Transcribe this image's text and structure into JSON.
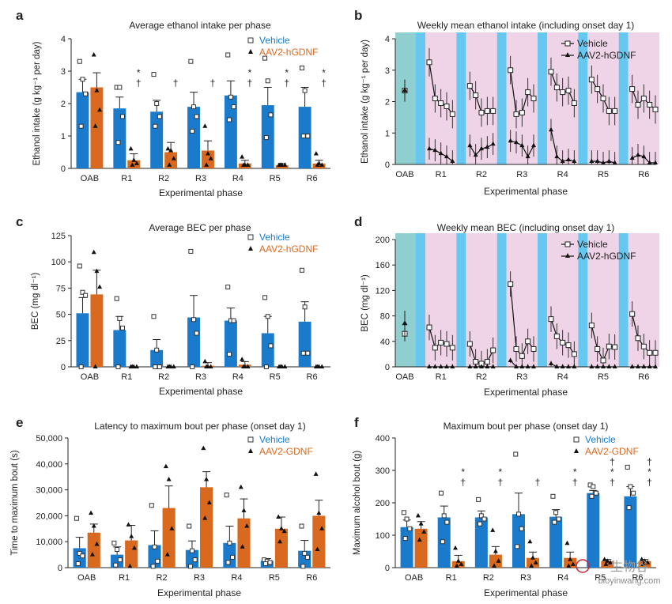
{
  "colors": {
    "vehicle": "#1a7acb",
    "treatment": "#d9691e",
    "oab_band": "#8fcfcf",
    "pink_band": "#efd3e6",
    "blue_band": "#66c8f0",
    "axis": "#222222"
  },
  "watermark": {
    "text": "bioyinwang.com",
    "cn": "生物谷"
  },
  "panels": [
    {
      "letter": "a",
      "title": "Average ethanol intake per phase",
      "xlabel": "Experimental phase",
      "ylabel": "Ethanol intake (g kg⁻¹ per day)"
    },
    {
      "letter": "b",
      "title": "Weekly mean ethanol intake (including onset day 1)",
      "xlabel": "Experimental phase",
      "ylabel": "Ethanol intake (g kg⁻¹ per day)"
    },
    {
      "letter": "c",
      "title": "Average BEC per phase",
      "xlabel": "Experimental phase",
      "ylabel": "BEC (mg dl⁻¹)"
    },
    {
      "letter": "d",
      "title": "Weekly mean BEC (including onset day 1)",
      "xlabel": "Experimental phase",
      "ylabel": "BEC (mg dl⁻¹)"
    },
    {
      "letter": "e",
      "title": "Latency to maximum bout per phase (onset day 1)",
      "xlabel": "Experimental phase",
      "ylabel": "Time to maximum bout (s)"
    },
    {
      "letter": "f",
      "title": "Maximum bout per phase (onset day 1)",
      "xlabel": "Experimental phase",
      "ylabel": "Maximum alcohol bout (g)"
    }
  ],
  "chart_data": [
    {
      "type": "bar",
      "panel": "a",
      "categories": [
        "OAB",
        "R1",
        "R2",
        "R3",
        "R4",
        "R5",
        "R6"
      ],
      "ylim": [
        0,
        4
      ],
      "yticks": [
        0,
        1,
        2,
        3,
        4
      ],
      "legend": [
        "Vehicle",
        "AAV2-hGDNF"
      ],
      "series": [
        {
          "name": "Vehicle",
          "values": [
            2.35,
            1.85,
            1.75,
            1.9,
            2.25,
            1.95,
            1.9
          ],
          "err": [
            0.4,
            0.35,
            0.35,
            0.45,
            0.45,
            0.55,
            0.6
          ],
          "points": [
            [
              3.3,
              2.75,
              2.3,
              1.3
            ],
            [
              2.5,
              2.5,
              1.6,
              0.8
            ],
            [
              2.9,
              2.0,
              1.6,
              1.3
            ],
            [
              3.3,
              1.9,
              1.6,
              1.15
            ],
            [
              3.5,
              2.2,
              1.9,
              1.5
            ],
            [
              3.4,
              2.7,
              1.65,
              0.95
            ],
            [
              3.1,
              2.4,
              1.0,
              1.0
            ]
          ]
        },
        {
          "name": "AAV2-hGDNF",
          "values": [
            2.5,
            0.25,
            0.5,
            0.55,
            0.15,
            0.1,
            0.15
          ],
          "err": [
            0.45,
            0.2,
            0.3,
            0.3,
            0.1,
            0.05,
            0.1
          ],
          "points": [
            [
              3.5,
              2.4,
              1.8,
              1.3
            ],
            [
              0.6,
              0.25,
              0.15,
              0.1
            ],
            [
              0.6,
              0.55,
              0.3,
              0.1
            ],
            [
              1.3,
              0.45,
              0.3,
              0.1
            ],
            [
              0.35,
              0.1,
              0.1,
              0.1
            ],
            [
              0.1,
              0.1,
              0.1,
              0.1
            ],
            [
              0.45,
              0.15,
              0.1,
              0.1
            ]
          ]
        }
      ],
      "annotations": [
        {
          "category": "R1",
          "marks": [
            "*",
            "†"
          ]
        },
        {
          "category": "R2",
          "marks": [
            "†"
          ]
        },
        {
          "category": "R3",
          "marks": [
            "†"
          ]
        },
        {
          "category": "R4",
          "marks": [
            "*",
            "†"
          ]
        },
        {
          "category": "R5",
          "marks": [
            "*",
            "†"
          ]
        },
        {
          "category": "R6",
          "marks": [
            "*",
            "†"
          ]
        }
      ]
    },
    {
      "type": "line",
      "panel": "b",
      "categories": [
        "OAB",
        "R1",
        "R2",
        "R3",
        "R4",
        "R5",
        "R6"
      ],
      "ylim": [
        0,
        4
      ],
      "yticks": [
        0,
        1,
        2,
        3,
        4
      ],
      "legend": [
        "Vehicle",
        "AAV2-hGDNF"
      ],
      "oab": {
        "Vehicle": [
          2.35,
          0.35
        ],
        "AAV2-hGDNF": [
          2.35,
          0.35
        ]
      },
      "series": [
        {
          "name": "Vehicle",
          "weeks": [
            [
              3.25,
              2.1,
              1.95,
              1.85,
              1.6
            ],
            [
              2.5,
              2.2,
              1.65,
              1.7,
              1.7
            ],
            [
              3.0,
              1.6,
              1.65,
              2.3,
              2.1
            ],
            [
              2.95,
              2.45,
              2.3,
              2.35,
              1.95
            ],
            [
              2.7,
              2.4,
              2.1,
              1.7,
              1.7
            ],
            [
              2.4,
              1.9,
              2.1,
              1.9,
              1.75
            ]
          ],
          "err": 0.45
        },
        {
          "name": "AAV2-hGDNF",
          "weeks": [
            [
              0.5,
              0.45,
              0.35,
              0.25,
              0.1
            ],
            [
              0.6,
              0.3,
              0.5,
              0.55,
              0.65
            ],
            [
              0.75,
              0.7,
              0.6,
              0.25,
              0.6
            ],
            [
              1.1,
              0.25,
              0.1,
              0.15,
              0.1
            ],
            [
              0.1,
              0.1,
              0.05,
              0.1,
              0.05
            ],
            [
              0.2,
              0.3,
              0.25,
              0.05,
              0.05
            ]
          ],
          "err": 0.35
        }
      ]
    },
    {
      "type": "bar",
      "panel": "c",
      "categories": [
        "OAB",
        "R1",
        "R2",
        "R3",
        "R4",
        "R5",
        "R6"
      ],
      "ylim": [
        0,
        125
      ],
      "yticks": [
        0,
        25,
        50,
        75,
        100,
        125
      ],
      "legend": [
        "Vehicle",
        "AAV2-hGDNF"
      ],
      "series": [
        {
          "name": "Vehicle",
          "values": [
            51,
            35,
            16,
            47,
            44,
            32,
            43
          ],
          "err": [
            15,
            13,
            10,
            21,
            12,
            16,
            19
          ],
          "points": [
            [
              96,
              71,
              68,
              0
            ],
            [
              65,
              46,
              37,
              0
            ],
            [
              48,
              16,
              0,
              0
            ],
            [
              110,
              45,
              32,
              0
            ],
            [
              76,
              44,
              44,
              12
            ],
            [
              66,
              48,
              20,
              0
            ],
            [
              92,
              57,
              13,
              13
            ]
          ]
        },
        {
          "name": "AAV2-hGDNF",
          "values": [
            69,
            0,
            0,
            1,
            2,
            0,
            0
          ],
          "err": [
            23,
            0,
            0,
            3,
            3,
            0,
            0
          ],
          "points": [
            [
              109,
              91,
              76,
              0
            ],
            [
              0,
              0,
              0,
              0
            ],
            [
              0,
              0,
              0,
              0
            ],
            [
              5,
              0,
              0,
              0
            ],
            [
              7,
              0,
              0,
              0
            ],
            [
              0,
              0,
              0,
              0
            ],
            [
              0,
              0,
              0,
              0
            ]
          ]
        }
      ]
    },
    {
      "type": "line",
      "panel": "d",
      "categories": [
        "OAB",
        "R1",
        "R2",
        "R3",
        "R4",
        "R5",
        "R6"
      ],
      "ylim": [
        0,
        200
      ],
      "yticks": [
        0,
        40,
        80,
        120,
        160,
        200
      ],
      "legend": [
        "Vehicle",
        "AAV2-hGDNF"
      ],
      "oab": {
        "Vehicle": [
          52,
          12
        ],
        "AAV2-hGDNF": [
          68,
          20
        ]
      },
      "series": [
        {
          "name": "Vehicle",
          "weeks": [
            [
              62,
              30,
              38,
              36,
              30
            ],
            [
              36,
              8,
              5,
              8,
              26
            ],
            [
              130,
              28,
              17,
              40,
              28
            ],
            [
              75,
              48,
              38,
              34,
              20
            ],
            [
              65,
              28,
              10,
              32,
              31
            ],
            [
              83,
              45,
              32,
              22,
              22
            ]
          ],
          "err": 20
        },
        {
          "name": "AAV2-hGDNF",
          "weeks": [
            [
              0,
              0,
              0,
              0,
              0
            ],
            [
              0,
              0,
              0,
              0,
              0
            ],
            [
              10,
              0,
              0,
              0,
              0
            ],
            [
              5,
              0,
              0,
              0,
              0
            ],
            [
              0,
              0,
              0,
              0,
              0
            ],
            [
              0,
              0,
              0,
              0,
              0
            ]
          ],
          "err": 4
        }
      ]
    },
    {
      "type": "bar",
      "panel": "e",
      "categories": [
        "OAB",
        "R1",
        "R2",
        "R3",
        "R4",
        "R5",
        "R6"
      ],
      "ylim": [
        0,
        50000
      ],
      "yticks": [
        0,
        10000,
        20000,
        30000,
        40000,
        50000
      ],
      "ytick_labels": [
        "0",
        "10,000",
        "20,000",
        "30,000",
        "40,000",
        "50,000"
      ],
      "legend": [
        "Vehicle",
        "AAV2-GDNF"
      ],
      "series": [
        {
          "name": "Vehicle",
          "values": [
            7500,
            5000,
            8700,
            6800,
            9500,
            2600,
            6500
          ],
          "err": [
            4200,
            3000,
            5500,
            3500,
            6500,
            900,
            4000
          ],
          "points": [
            [
              19000,
              5500,
              4500,
              1500
            ],
            [
              9500,
              7000,
              3000,
              1000
            ],
            [
              24000,
              8000,
              2500,
              500
            ],
            [
              16000,
              6500,
              3000,
              500
            ],
            [
              28000,
              9500,
              4000,
              2000
            ],
            [
              3000,
              2500,
              2000,
              1500
            ],
            [
              16000,
              5500,
              4000,
              500
            ]
          ]
        },
        {
          "name": "AAV2-GDNF",
          "values": [
            13500,
            10500,
            23000,
            31000,
            19000,
            15000,
            20000
          ],
          "err": [
            3300,
            5800,
            8500,
            6000,
            7500,
            4500,
            6000
          ],
          "points": [
            [
              21000,
              16000,
              9000,
              5000
            ],
            [
              16500,
              12000,
              7500,
              500
            ],
            [
              39000,
              34000,
              15000,
              5000
            ],
            [
              46000,
              34000,
              25000,
              19000
            ],
            [
              31000,
              22000,
              16000,
              8000
            ],
            [
              19500,
              15000,
              14000,
              10000
            ],
            [
              36000,
              21000,
              15000,
              7000
            ]
          ]
        }
      ]
    },
    {
      "type": "bar",
      "panel": "f",
      "categories": [
        "OAB",
        "R1",
        "R2",
        "R3",
        "R4",
        "R5",
        "R6"
      ],
      "ylim": [
        0,
        400
      ],
      "yticks": [
        0,
        100,
        200,
        300,
        400
      ],
      "legend": [
        "Vehicle",
        "AAV2-GDNF"
      ],
      "series": [
        {
          "name": "Vehicle",
          "values": [
            125,
            155,
            155,
            165,
            157,
            230,
            220
          ],
          "err": [
            22,
            35,
            20,
            65,
            22,
            8,
            30
          ],
          "points": [
            [
              170,
              150,
              120,
              90
            ],
            [
              230,
              160,
              140,
              80
            ],
            [
              210,
              160,
              150,
              135
            ],
            [
              350,
              165,
              120,
              65
            ],
            [
              220,
              170,
              150,
              140
            ],
            [
              255,
              250,
              230,
              220
            ],
            [
              310,
              250,
              230,
              185
            ]
          ]
        },
        {
          "name": "AAV2-GDNF",
          "values": [
            120,
            20,
            40,
            30,
            30,
            20,
            20
          ],
          "err": [
            22,
            18,
            25,
            18,
            18,
            5,
            5
          ],
          "points": [
            [
              160,
              135,
              110,
              85
            ],
            [
              60,
              20,
              10,
              5
            ],
            [
              115,
              50,
              20,
              5
            ],
            [
              80,
              30,
              15,
              5
            ],
            [
              75,
              25,
              10,
              5
            ],
            [
              25,
              20,
              15,
              10
            ],
            [
              25,
              20,
              15,
              10
            ]
          ]
        }
      ],
      "annotations": [
        {
          "category": "R1",
          "marks": [
            "*",
            "†"
          ]
        },
        {
          "category": "R2",
          "marks": [
            "*",
            "†"
          ]
        },
        {
          "category": "R3",
          "marks": [
            "†"
          ]
        },
        {
          "category": "R4",
          "marks": [
            "*",
            "†"
          ]
        },
        {
          "category": "R5",
          "marks": [
            "†",
            "*",
            "†"
          ]
        },
        {
          "category": "R6",
          "marks": [
            "†",
            "*",
            "†"
          ]
        }
      ]
    }
  ]
}
